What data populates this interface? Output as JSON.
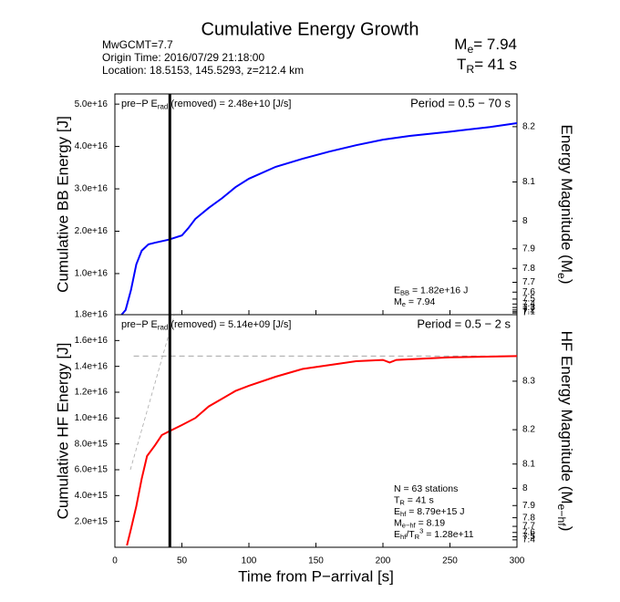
{
  "title": "Cumulative Energy Growth",
  "info": [
    "MwGCMT=7.7",
    "Origin Time: 2016/07/29 21:18:00",
    "Location: 18.5153, 145.5293, z=212.4 km"
  ],
  "magnitude": [
    {
      "text": "M"
    },
    {
      "sub": "e"
    },
    {
      "text": "= 7.94"
    }
  ],
  "rupture": [
    {
      "text": "T"
    },
    {
      "sub": "R"
    },
    {
      "text": "= 41 s"
    }
  ],
  "chart_data": [
    {
      "type": "line",
      "ylabel": "Cumulative BB Energy [J]",
      "y2label": [
        {
          "text": "Energy Magnitude (M"
        },
        {
          "sub": "e"
        },
        {
          "text": ")"
        }
      ],
      "period": "Period = 0.5 − 70 s",
      "pre_p": [
        {
          "text": "pre−P E"
        },
        {
          "sub": "rad"
        },
        {
          "text": " (removed) = 2.48e+10 [J/s]"
        }
      ],
      "xlim": [
        0,
        300
      ],
      "xticks": [
        0,
        50,
        100,
        150,
        200,
        250,
        300
      ],
      "ylim": [
        300000000000000.0,
        5.24e+16
      ],
      "yticks": [
        {
          "value": 1e+16,
          "label": "1.0e+16"
        },
        {
          "value": 2e+16,
          "label": "2.0e+16"
        },
        {
          "value": 3e+16,
          "label": "3.0e+16"
        },
        {
          "value": 4e+16,
          "label": "4.0e+16"
        },
        {
          "value": 5e+16,
          "label": "5.0e+16"
        }
      ],
      "bottom_label": "1.8e+16",
      "y2ticks": [
        7.0,
        7.1,
        7.2,
        7.3,
        7.4,
        7.5,
        7.6,
        7.7,
        7.8,
        7.9,
        8.0,
        8.1,
        8.2
      ],
      "y2_reference": {
        "magnitude": 7.94,
        "energy": 1.82e+16
      },
      "vline_x": 41,
      "x": [
        5,
        8,
        12,
        16,
        20,
        25,
        30,
        40,
        50,
        55,
        60,
        70,
        80,
        90,
        100,
        120,
        140,
        160,
        180,
        200,
        220,
        250,
        280,
        300
      ],
      "series": [
        {
          "color": "#0000ff",
          "values": [
            300000000000000.0,
            1400000000000000.0,
            6100000000000000.0,
            1.22e+16,
            1.54e+16,
            1.69e+16,
            1.73e+16,
            1.8e+16,
            1.9e+16,
            2.08e+16,
            2.29e+16,
            2.55e+16,
            2.78e+16,
            3.04e+16,
            3.24e+16,
            3.52e+16,
            3.71e+16,
            3.88e+16,
            4.03e+16,
            4.16e+16,
            4.25e+16,
            4.35e+16,
            4.46e+16,
            4.55e+16
          ]
        }
      ],
      "notes": [
        [
          {
            "text": "E"
          },
          {
            "sub": "BB"
          },
          {
            "text": " = 1.82e+16 J"
          }
        ],
        [
          {
            "text": "M"
          },
          {
            "sub": "e"
          },
          {
            "text": " = 7.94"
          }
        ]
      ]
    },
    {
      "type": "line",
      "ylabel": "Cumulative HF Energy [J]",
      "y2label": [
        {
          "text": "HF Energy Magnitude (M"
        },
        {
          "sub": "e−hf"
        },
        {
          "text": ")"
        }
      ],
      "period": "Period = 0.5 − 2 s",
      "pre_p": [
        {
          "text": "pre−P E"
        },
        {
          "sub": "rad"
        },
        {
          "text": " (removed) = 5.14e+09 [J/s]"
        }
      ],
      "xlabel": "Time from P−arrival [s]",
      "xlim": [
        0,
        300
      ],
      "xticks": [
        0,
        50,
        100,
        150,
        200,
        250,
        300
      ],
      "ylim": [
        0,
        1.8e+16
      ],
      "yticks": [
        {
          "value": 2000000000000000.0,
          "label": "2.0e+15"
        },
        {
          "value": 4000000000000000.0,
          "label": "4.0e+15"
        },
        {
          "value": 6000000000000000.0,
          "label": "6.0e+15"
        },
        {
          "value": 8000000000000000.0,
          "label": "8.0e+15"
        },
        {
          "value": 1e+16,
          "label": "1.0e+16"
        },
        {
          "value": 1.2e+16,
          "label": "1.2e+16"
        },
        {
          "value": 1.4e+16,
          "label": "1.4e+16"
        },
        {
          "value": 1.6e+16,
          "label": "1.6e+16"
        }
      ],
      "y2ticks": [
        7.4,
        7.5,
        7.6,
        7.7,
        7.8,
        7.9,
        8.0,
        8.1,
        8.2,
        8.3
      ],
      "y2_reference": {
        "magnitude": 8.19,
        "energy": 8790000000000000.0
      },
      "vline_x": 41,
      "reference_level": 1.48e+16,
      "reference_x": [
        14,
        300
      ],
      "x": [
        9,
        12,
        16,
        20,
        24,
        30,
        35,
        41,
        50,
        60,
        70,
        80,
        90,
        100,
        120,
        140,
        160,
        180,
        200,
        205,
        210,
        250,
        300
      ],
      "series": [
        {
          "color": "#ff0000",
          "values": [
            140000000000000.0,
            1410000000000000.0,
            3180000000000000.0,
            5300000000000000.0,
            7060000000000000.0,
            7900000000000000.0,
            8680000000000000.0,
            9000000000000000.0,
            9460000000000000.0,
            1e+16,
            1.09e+16,
            1.15e+16,
            1.21e+16,
            1.25e+16,
            1.32e+16,
            1.38e+16,
            1.41e+16,
            1.44e+16,
            1.45e+16,
            1.43e+16,
            1.45e+16,
            1.47e+16,
            1.48e+16
          ]
        }
      ],
      "notes": [
        [
          {
            "text": "N = 63 stations"
          }
        ],
        [
          {
            "text": "T"
          },
          {
            "sub": "R"
          },
          {
            "text": " = 41  s"
          }
        ],
        [
          {
            "text": "E"
          },
          {
            "sub": "hf"
          },
          {
            "text": " = 8.79e+15 J"
          }
        ],
        [
          {
            "text": "M"
          },
          {
            "sub": "e−hf"
          },
          {
            "text": " = 8.19"
          }
        ],
        [
          {
            "text": "E"
          },
          {
            "sub": "hf"
          },
          {
            "text": "/T"
          },
          {
            "sub": "R"
          },
          {
            "sup": "3"
          },
          {
            "text": " =  1.28e+11"
          }
        ]
      ]
    }
  ]
}
